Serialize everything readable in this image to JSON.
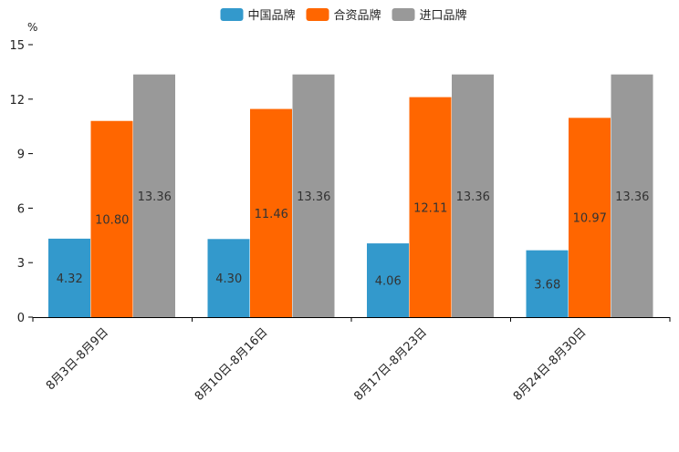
{
  "chart_data": {
    "type": "bar",
    "title": "",
    "unit": "%",
    "xlabel": "",
    "ylabel": "%",
    "ylim": [
      0,
      15
    ],
    "yticks": [
      0,
      3,
      6,
      9,
      12,
      15
    ],
    "legend_position": "top-center",
    "grid": false,
    "categories": [
      "8月3日-8月9日",
      "8月10日-8月16日",
      "8月17日-8月23日",
      "8月24日-8月30日"
    ],
    "series": [
      {
        "name": "中国品牌",
        "color": "#3399cc",
        "values": [
          4.32,
          4.3,
          4.06,
          3.68
        ],
        "labels": [
          "4.32",
          "4.30",
          "4.06",
          "3.68"
        ]
      },
      {
        "name": "合资品牌",
        "color": "#ff6600",
        "values": [
          10.8,
          11.46,
          12.11,
          10.97
        ],
        "labels": [
          "10.80",
          "11.46",
          "12.11",
          "10.97"
        ]
      },
      {
        "name": "进口品牌",
        "color": "#999999",
        "values": [
          13.36,
          13.36,
          13.36,
          13.36
        ],
        "labels": [
          "13.36",
          "13.36",
          "13.36",
          "13.36"
        ]
      }
    ]
  }
}
